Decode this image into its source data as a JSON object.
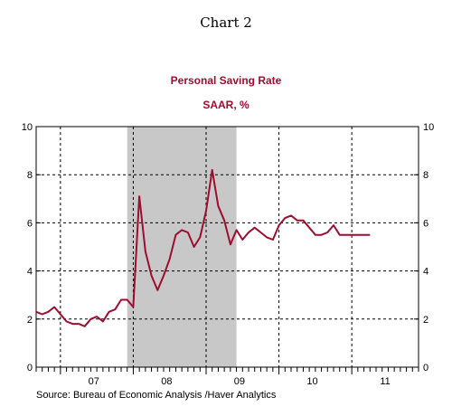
{
  "colors": {
    "line": "#9b0e2f",
    "recession": "#c8c8c8",
    "subtitle": "#9b0e2f"
  },
  "chart_data": {
    "type": "line",
    "title": "Chart 2",
    "subtitle": "Personal Saving Rate",
    "subtitle2": "SAAR, %",
    "source": "Source:  Bureau of Economic Analysis /Haver Analytics",
    "ylim": [
      0,
      10
    ],
    "y_ticks": [
      "0",
      "2",
      "4",
      "6",
      "8",
      "10"
    ],
    "x_range": [
      "2006-09",
      "2011-12"
    ],
    "x_year_labels": [
      "07",
      "08",
      "09",
      "10",
      "11"
    ],
    "grid": true,
    "recession": {
      "start": "2007-12",
      "end": "2009-06"
    },
    "series": [
      {
        "x": [
          "2006-09",
          "2006-10",
          "2006-11",
          "2006-12",
          "2007-01",
          "2007-02",
          "2007-03",
          "2007-04",
          "2007-05",
          "2007-06",
          "2007-07",
          "2007-08",
          "2007-09",
          "2007-10",
          "2007-11",
          "2007-12",
          "2008-01",
          "2008-02",
          "2008-03",
          "2008-04",
          "2008-05",
          "2008-06",
          "2008-07",
          "2008-08",
          "2008-09",
          "2008-10",
          "2008-11",
          "2008-12",
          "2009-01",
          "2009-02",
          "2009-03",
          "2009-04",
          "2009-05",
          "2009-06",
          "2009-07",
          "2009-08",
          "2009-09",
          "2009-10",
          "2009-11",
          "2009-12",
          "2010-01",
          "2010-02",
          "2010-03",
          "2010-04",
          "2010-05",
          "2010-06",
          "2010-07",
          "2010-08",
          "2010-09",
          "2010-10",
          "2010-11",
          "2010-12",
          "2011-01",
          "2011-02",
          "2011-03",
          "2011-04"
        ],
        "values": [
          2.3,
          2.2,
          2.3,
          2.5,
          2.2,
          1.9,
          1.8,
          1.8,
          1.7,
          2.0,
          2.1,
          1.9,
          2.3,
          2.4,
          2.8,
          2.8,
          2.5,
          7.1,
          4.8,
          3.8,
          3.2,
          3.8,
          4.5,
          5.5,
          5.7,
          5.6,
          5.0,
          5.4,
          6.5,
          8.2,
          6.7,
          6.1,
          5.1,
          5.7,
          5.3,
          5.6,
          5.8,
          5.6,
          5.4,
          5.3,
          5.9,
          6.2,
          6.3,
          6.1,
          6.1,
          5.8,
          5.5,
          5.5,
          5.6,
          5.9,
          5.5,
          5.5,
          5.5,
          5.5,
          5.5,
          5.5
        ]
      }
    ]
  }
}
